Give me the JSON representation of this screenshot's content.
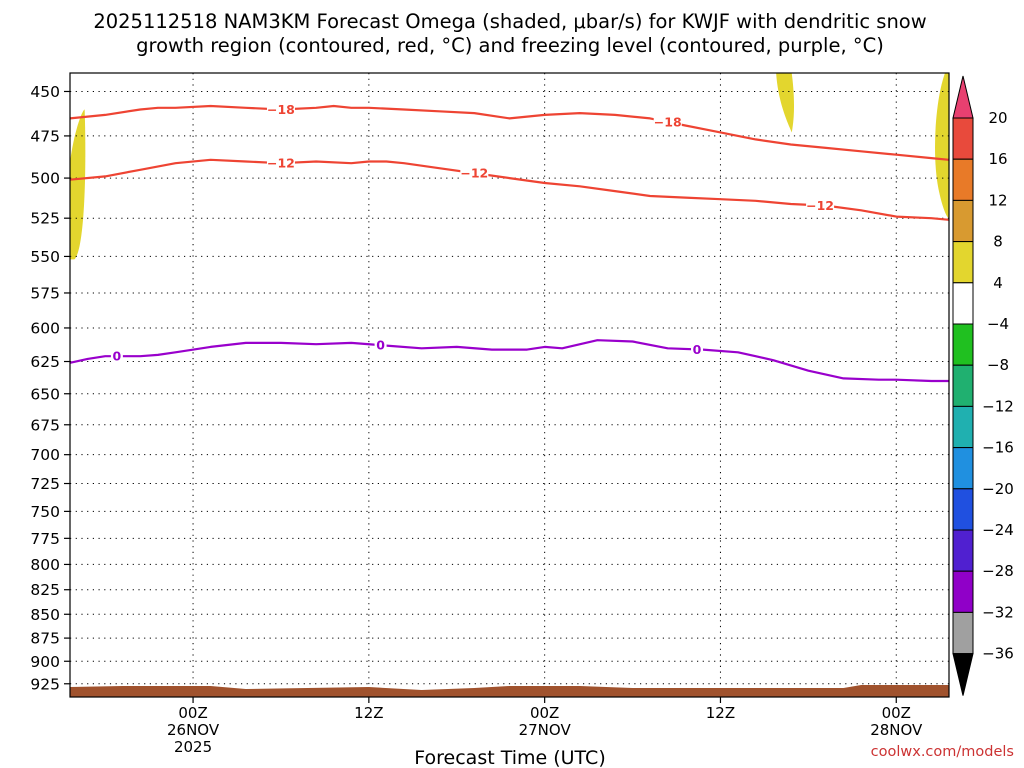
{
  "chart_data": {
    "type": "line",
    "title_line1": "2025112518 NAM3KM Forecast Omega (shaded, μbar/s) for KWJF with dendritic snow",
    "title_line2": "growth region (contoured, red, °C) and freezing level (contoured, purple, °C)",
    "xlabel": "Forecast Time (UTC)",
    "credit": "coolwx.com/models",
    "y_axis": {
      "label": "",
      "scale": "log-pressure",
      "inverted": true,
      "range": [
        440,
        940
      ],
      "ticks": [
        450,
        475,
        500,
        525,
        550,
        575,
        600,
        625,
        650,
        675,
        700,
        725,
        750,
        775,
        800,
        825,
        850,
        875,
        900,
        925
      ]
    },
    "x_axis": {
      "range": [
        -6,
        144
      ],
      "ticks": [
        {
          "x": 15,
          "lines": [
            "00Z",
            "26NOV",
            "2025"
          ]
        },
        {
          "x": 45,
          "lines": [
            "12Z"
          ]
        },
        {
          "x": 75,
          "lines": [
            "00Z",
            "27NOV"
          ]
        },
        {
          "x": 105,
          "lines": [
            "12Z"
          ]
        },
        {
          "x": 135,
          "lines": [
            "00Z",
            "28NOV"
          ]
        }
      ]
    },
    "grid": true,
    "series": [
      {
        "label": "-18",
        "color": "#ee4433",
        "x": [
          -6,
          0,
          6,
          9,
          12,
          18,
          24,
          30,
          36,
          39,
          42,
          45,
          51,
          57,
          63,
          69,
          75,
          81,
          87,
          93,
          99,
          105,
          111,
          117,
          123,
          129,
          135,
          141,
          144
        ],
        "y": [
          465,
          463,
          460,
          459,
          459,
          458,
          459,
          460,
          459,
          458,
          459,
          459,
          460,
          461,
          462,
          465,
          463,
          462,
          463,
          465,
          469,
          473,
          477,
          480,
          482,
          484,
          486,
          488,
          489
        ]
      },
      {
        "label": "-12",
        "color": "#ee4433",
        "x": [
          -6,
          0,
          6,
          12,
          18,
          24,
          30,
          36,
          42,
          45,
          48,
          51,
          57,
          63,
          69,
          75,
          81,
          87,
          93,
          99,
          105,
          111,
          117,
          123,
          129,
          135,
          141,
          144
        ],
        "y": [
          501,
          499,
          495,
          491,
          489,
          490,
          491,
          490,
          491,
          490,
          490,
          491,
          494,
          497,
          500,
          503,
          505,
          508,
          511,
          512,
          513,
          514,
          516,
          517,
          520,
          524,
          525,
          526
        ]
      },
      {
        "label": "0",
        "color": "#9900cc",
        "x": [
          -6,
          -3,
          0,
          6,
          9,
          12,
          18,
          24,
          30,
          36,
          42,
          48,
          54,
          60,
          66,
          72,
          75,
          78,
          84,
          90,
          96,
          102,
          108,
          111,
          114,
          120,
          126,
          132,
          135,
          141,
          144
        ],
        "y": [
          626,
          623,
          621,
          621,
          620,
          618,
          614,
          611,
          611,
          612,
          611,
          613,
          615,
          614,
          616,
          616,
          614,
          615,
          609,
          610,
          615,
          616,
          618,
          621,
          624,
          632,
          638,
          639,
          639,
          640,
          640
        ]
      }
    ],
    "shaded_regions": [
      {
        "color": "#e3d62e",
        "category": "4 to 8",
        "x_range": [
          -6,
          -3.5
        ],
        "p_range": [
          460,
          552
        ]
      },
      {
        "color": "#e3d62e",
        "category": "4 to 8",
        "x_range": [
          114.5,
          117.5
        ],
        "p_range": [
          435,
          473
        ]
      },
      {
        "color": "#e3d62e",
        "category": "4 to 8",
        "x_range": [
          141.5,
          144
        ],
        "p_range": [
          435,
          525
        ]
      }
    ],
    "colorbar": {
      "labels": [
        "20",
        "16",
        "12",
        "8",
        "4",
        "−4",
        "−8",
        "−12",
        "−16",
        "−20",
        "−24",
        "−28",
        "−32",
        "−36"
      ],
      "colors": [
        "#e84070",
        "#e84a3c",
        "#e87a28",
        "#d89a30",
        "#e3d62e",
        "#ffffff",
        "#20c020",
        "#20b070",
        "#20b0b0",
        "#2090e0",
        "#2050e0",
        "#5020d0",
        "#9000c8",
        "#a0a0a0",
        "#000000"
      ]
    }
  }
}
